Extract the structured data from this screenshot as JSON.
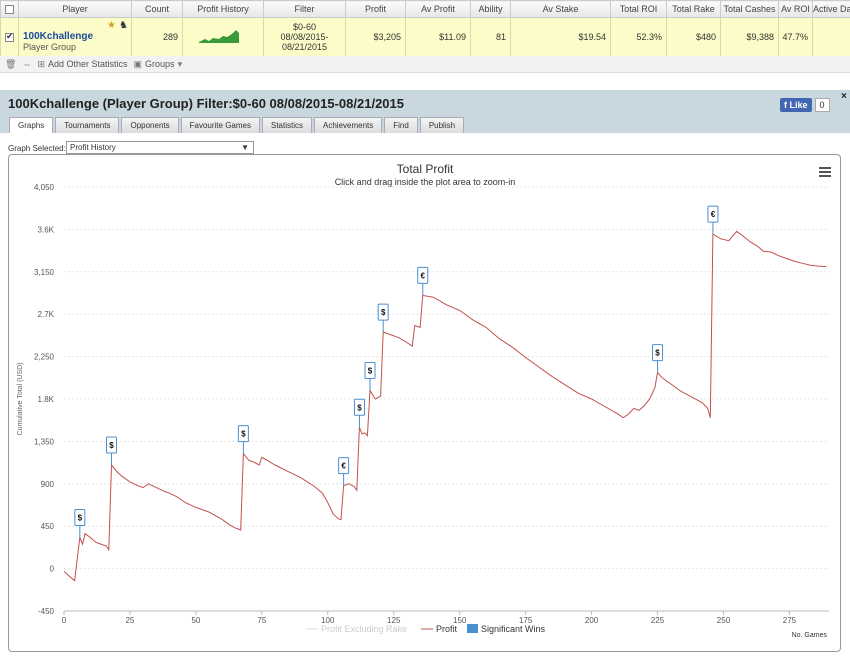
{
  "table": {
    "headers": [
      "Player",
      "Count",
      "Profit History",
      "Filter",
      "Profit",
      "Av Profit",
      "Ability",
      "Av Stake",
      "Total ROI",
      "Total Rake",
      "Total Cashes",
      "Av ROI",
      "Active Da"
    ],
    "row": {
      "player_name": "100Kchallenge",
      "player_type": "Player Group",
      "count": "289",
      "filter_line1": "$0-60",
      "filter_line2": "08/08/2015-",
      "filter_line3": "08/21/2015",
      "profit": "$3,205",
      "av_profit": "$11.09",
      "ability": "81",
      "av_stake": "$19.54",
      "total_roi": "52.3%",
      "total_rake": "$480",
      "total_cashes": "$9,388",
      "av_roi": "47.7%",
      "active_days": ""
    }
  },
  "toolbar": {
    "add_stats_label": "Add Other Statistics",
    "groups_label": "Groups"
  },
  "header": {
    "title": "100Kchallenge (Player Group) Filter:$0-60 08/08/2015-08/21/2015",
    "like_label": "Like",
    "like_count": "0",
    "close_label": "×"
  },
  "tabs": [
    "Graphs",
    "Tournaments",
    "Opponents",
    "Favourite Games",
    "Statistics",
    "Achievements",
    "Find",
    "Publish"
  ],
  "graph_select": {
    "label": "Graph Selected:",
    "value": "Profit History"
  },
  "chart_data": {
    "type": "line",
    "title": "Total Profit",
    "subtitle": "Click and drag inside the plot area to zoom-in",
    "xlabel": "No. Games",
    "ylabel": "Cumulative Total (USD)",
    "xlim": [
      0,
      290
    ],
    "ylim": [
      -450,
      4050
    ],
    "x_ticks": [
      0,
      25,
      50,
      75,
      100,
      125,
      150,
      175,
      200,
      225,
      250,
      275
    ],
    "y_ticks": [
      -450,
      0,
      450,
      900,
      1350,
      1800,
      2250,
      2700,
      3150,
      3600,
      4050
    ],
    "y_tick_labels": [
      "-450",
      "0",
      "450",
      "900",
      "1,350",
      "1.8K",
      "2,250",
      "2.7K",
      "3,150",
      "3.6K",
      "4,050"
    ],
    "legend": [
      "Profit Excluding Rake",
      "Profit",
      "Significant Wins"
    ],
    "series": [
      {
        "name": "Profit",
        "color": "#c0504d",
        "points": [
          [
            0,
            -30
          ],
          [
            2,
            -80
          ],
          [
            4,
            -130
          ],
          [
            5,
            100
          ],
          [
            6,
            330
          ],
          [
            7,
            260
          ],
          [
            8,
            370
          ],
          [
            10,
            330
          ],
          [
            12,
            280
          ],
          [
            14,
            260
          ],
          [
            16,
            240
          ],
          [
            17,
            200
          ],
          [
            18,
            1100
          ],
          [
            20,
            1030
          ],
          [
            22,
            980
          ],
          [
            25,
            920
          ],
          [
            28,
            880
          ],
          [
            30,
            860
          ],
          [
            32,
            900
          ],
          [
            35,
            860
          ],
          [
            38,
            820
          ],
          [
            40,
            800
          ],
          [
            43,
            760
          ],
          [
            46,
            700
          ],
          [
            50,
            650
          ],
          [
            55,
            600
          ],
          [
            60,
            520
          ],
          [
            63,
            460
          ],
          [
            65,
            430
          ],
          [
            66,
            420
          ],
          [
            67,
            410
          ],
          [
            68,
            1220
          ],
          [
            70,
            1150
          ],
          [
            72,
            1130
          ],
          [
            74,
            1100
          ],
          [
            75,
            1180
          ],
          [
            77,
            1150
          ],
          [
            80,
            1100
          ],
          [
            85,
            1030
          ],
          [
            90,
            960
          ],
          [
            95,
            870
          ],
          [
            98,
            800
          ],
          [
            100,
            700
          ],
          [
            102,
            580
          ],
          [
            104,
            530
          ],
          [
            105,
            520
          ],
          [
            106,
            880
          ],
          [
            108,
            900
          ],
          [
            110,
            870
          ],
          [
            111,
            830
          ],
          [
            112,
            1500
          ],
          [
            113,
            1430
          ],
          [
            114,
            1440
          ],
          [
            115,
            1410
          ],
          [
            116,
            1890
          ],
          [
            118,
            1800
          ],
          [
            120,
            1830
          ],
          [
            121,
            2510
          ],
          [
            124,
            2480
          ],
          [
            127,
            2450
          ],
          [
            130,
            2400
          ],
          [
            132,
            2360
          ],
          [
            133,
            2580
          ],
          [
            135,
            2560
          ],
          [
            136,
            2900
          ],
          [
            140,
            2880
          ],
          [
            145,
            2800
          ],
          [
            150,
            2740
          ],
          [
            155,
            2640
          ],
          [
            160,
            2560
          ],
          [
            165,
            2440
          ],
          [
            170,
            2350
          ],
          [
            175,
            2240
          ],
          [
            180,
            2140
          ],
          [
            185,
            2040
          ],
          [
            190,
            1950
          ],
          [
            195,
            1860
          ],
          [
            200,
            1800
          ],
          [
            205,
            1720
          ],
          [
            210,
            1640
          ],
          [
            212,
            1600
          ],
          [
            214,
            1640
          ],
          [
            216,
            1700
          ],
          [
            218,
            1680
          ],
          [
            220,
            1730
          ],
          [
            222,
            1800
          ],
          [
            224,
            1920
          ],
          [
            225,
            2080
          ],
          [
            227,
            2020
          ],
          [
            230,
            1960
          ],
          [
            234,
            1880
          ],
          [
            238,
            1820
          ],
          [
            242,
            1760
          ],
          [
            244,
            1700
          ],
          [
            245,
            1600
          ],
          [
            246,
            3550
          ],
          [
            249,
            3500
          ],
          [
            252,
            3480
          ],
          [
            255,
            3580
          ],
          [
            257,
            3540
          ],
          [
            260,
            3470
          ],
          [
            263,
            3420
          ],
          [
            265,
            3370
          ],
          [
            268,
            3360
          ],
          [
            271,
            3320
          ],
          [
            274,
            3290
          ],
          [
            277,
            3260
          ],
          [
            280,
            3240
          ],
          [
            283,
            3220
          ],
          [
            286,
            3210
          ],
          [
            289,
            3205
          ]
        ]
      }
    ],
    "flags": [
      {
        "x": 6,
        "y": 330,
        "label": "$"
      },
      {
        "x": 18,
        "y": 1100,
        "label": "$"
      },
      {
        "x": 68,
        "y": 1220,
        "label": "$"
      },
      {
        "x": 106,
        "y": 880,
        "label": "€"
      },
      {
        "x": 112,
        "y": 1500,
        "label": "$"
      },
      {
        "x": 116,
        "y": 1890,
        "label": "$"
      },
      {
        "x": 121,
        "y": 2510,
        "label": "$"
      },
      {
        "x": 136,
        "y": 2900,
        "label": "€"
      },
      {
        "x": 225,
        "y": 2080,
        "label": "$"
      },
      {
        "x": 246,
        "y": 3550,
        "label": "€"
      }
    ],
    "grid": true,
    "legend_position": "bottom"
  }
}
